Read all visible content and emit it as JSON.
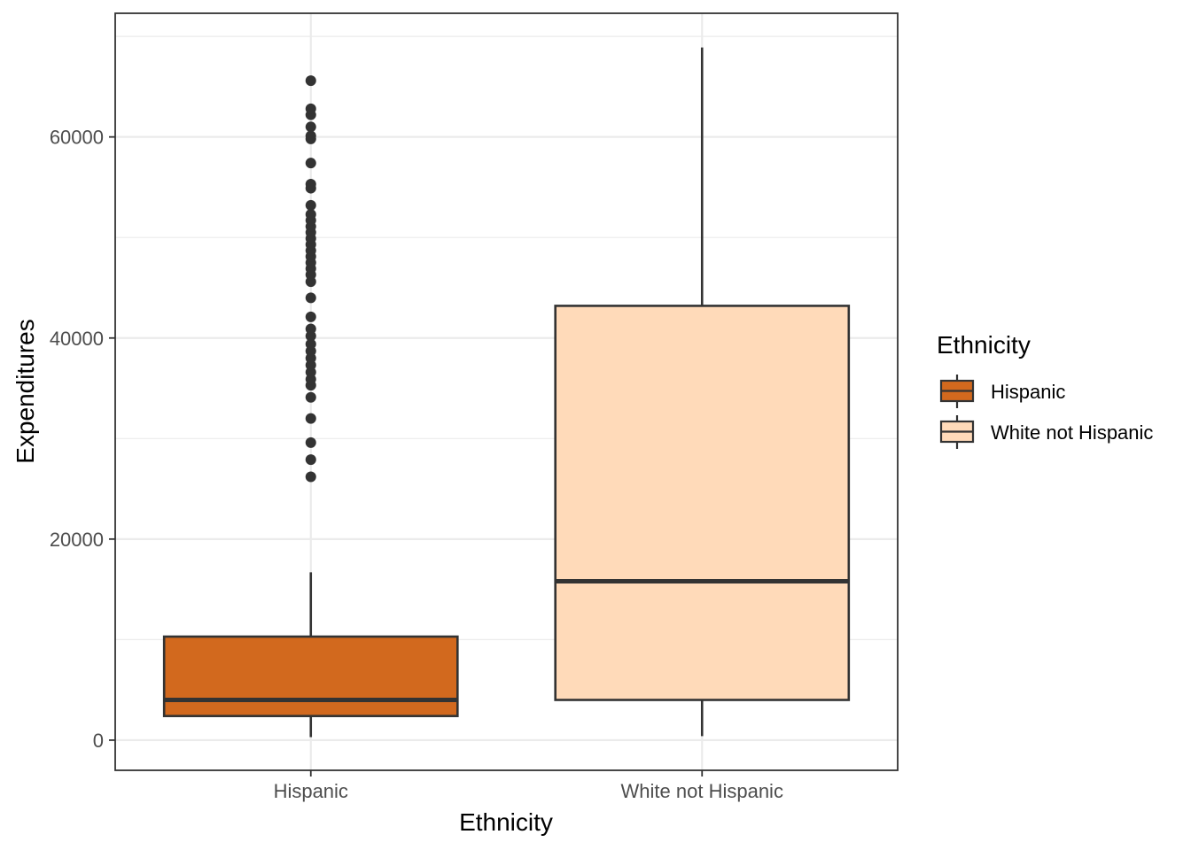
{
  "chart_data": {
    "type": "box",
    "xlabel": "Ethnicity",
    "ylabel": "Expenditures",
    "categories": [
      "Hispanic",
      "White not Hispanic"
    ],
    "ylim": [
      -3000,
      72300
    ],
    "y_ticks": [
      0,
      20000,
      40000,
      60000
    ],
    "grid": true,
    "legend": {
      "title": "Ethnicity",
      "placement": "right",
      "entries": [
        "Hispanic",
        "White not Hispanic"
      ]
    },
    "colors": [
      "#D2691E",
      "#FFDAB9"
    ],
    "boxes": [
      {
        "category": "Hispanic",
        "whisker_low": 300,
        "q1": 2400,
        "median": 4000,
        "q3": 10300,
        "whisker_high": 16700,
        "outliers": [
          26200,
          27900,
          29600,
          32000,
          34100,
          35300,
          35900,
          36600,
          37300,
          38000,
          38700,
          39400,
          40200,
          40900,
          42100,
          44000,
          45600,
          46300,
          46900,
          47500,
          48100,
          48700,
          49300,
          49900,
          50500,
          51100,
          51700,
          52300,
          53200,
          54900,
          55300,
          57400,
          59800,
          60100,
          61000,
          62200,
          62800,
          65600
        ]
      },
      {
        "category": "White not Hispanic",
        "whisker_low": 400,
        "q1": 4000,
        "median": 15800,
        "q3": 43200,
        "whisker_high": 68900,
        "outliers": []
      }
    ]
  }
}
